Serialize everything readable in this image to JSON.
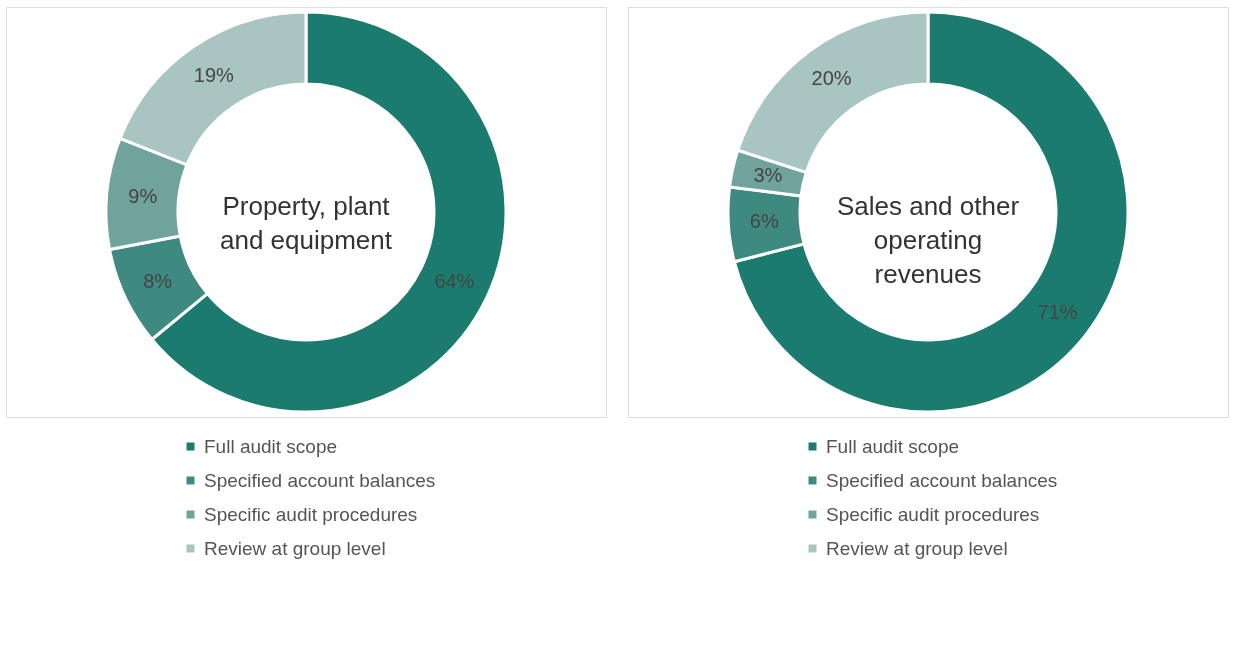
{
  "chart_data": [
    {
      "type": "donut",
      "title": "Property, plant and equipment",
      "categories": [
        "Full audit scope",
        "Specified account balances",
        "Specific audit procedures",
        "Review at group level"
      ],
      "values": [
        64,
        8,
        9,
        19
      ],
      "colors": [
        "#1b7b6f",
        "#3f8a80",
        "#6fa39c",
        "#a8c5c1"
      ],
      "value_labels": [
        "64%",
        "8%",
        "9%",
        "19%"
      ],
      "legend": "bottom"
    },
    {
      "type": "donut",
      "title": "Sales and other operating revenues",
      "categories": [
        "Full audit scope",
        "Specified account balances",
        "Specific audit procedures",
        "Review at group level"
      ],
      "values": [
        71,
        6,
        3,
        20
      ],
      "colors": [
        "#1b7b6f",
        "#3f8a80",
        "#6fa39c",
        "#a8c5c1"
      ],
      "value_labels": [
        "71%",
        "6%",
        "3%",
        "20%"
      ],
      "legend": "bottom"
    }
  ]
}
